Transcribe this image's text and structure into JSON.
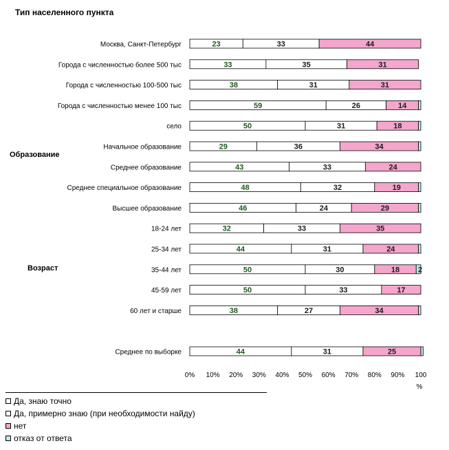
{
  "chart_data": {
    "type": "bar",
    "stacked": true,
    "orientation": "horizontal",
    "title": "Тип населенного пункта",
    "x_unit": "%",
    "xlim": [
      0,
      100
    ],
    "x_ticks": [
      "0%",
      "10%",
      "20%",
      "30%",
      "40%",
      "50%",
      "60%",
      "70%",
      "80%",
      "90%",
      "100"
    ],
    "categories": [
      "Москва, Санкт-Петербург",
      "Города с численностью более 500 тыс",
      "Города с численностью 100-500 тыс",
      "Города с численностью менее 100 тыс",
      "село",
      "Начальное образование",
      "Среднее образование",
      "Среднее специальное образование",
      "Высшее образование",
      "18-24 лет",
      "25-34 лет",
      "35-44 лет",
      "45-59 лет",
      "60 лет и старше",
      "",
      "Среднее по выборке"
    ],
    "group_labels": [
      {
        "label": "Образование",
        "category_index": 5
      },
      {
        "label": "Возраст",
        "category_index": 11
      }
    ],
    "series": [
      {
        "name": "Да, знаю точно",
        "color": "#ffffff",
        "values": [
          23,
          33,
          38,
          59,
          50,
          29,
          43,
          48,
          46,
          32,
          44,
          50,
          50,
          38,
          null,
          44
        ]
      },
      {
        "name": "Да, примерно знаю (при необходимости найду)",
        "color": "#ffffff",
        "values": [
          33,
          35,
          31,
          26,
          31,
          36,
          33,
          32,
          24,
          33,
          31,
          30,
          33,
          27,
          null,
          31
        ]
      },
      {
        "name": "нет",
        "color": "#f4a6cc",
        "values": [
          44,
          31,
          31,
          14,
          18,
          34,
          24,
          19,
          29,
          35,
          24,
          18,
          17,
          34,
          null,
          25
        ]
      },
      {
        "name": "отказ от ответа",
        "color": "#bfe8ea",
        "values": [
          0,
          0,
          0,
          1,
          1,
          1,
          0,
          1,
          1,
          0,
          1,
          2,
          0,
          1,
          null,
          1
        ]
      }
    ],
    "data_labels": [
      [
        "23",
        "33",
        "44",
        ""
      ],
      [
        "33",
        "35",
        "31",
        ""
      ],
      [
        "38",
        "31",
        "31",
        ""
      ],
      [
        "59",
        "26",
        "14",
        ""
      ],
      [
        "50",
        "31",
        "18",
        ""
      ],
      [
        "29",
        "36",
        "34",
        ""
      ],
      [
        "43",
        "33",
        "24",
        ""
      ],
      [
        "48",
        "32",
        "19",
        ""
      ],
      [
        "46",
        "24",
        "29",
        ""
      ],
      [
        "32",
        "33",
        "35",
        ""
      ],
      [
        "44",
        "31",
        "24",
        ""
      ],
      [
        "50",
        "30",
        "18",
        "2"
      ],
      [
        "50",
        "33",
        "17",
        ""
      ],
      [
        "38",
        "27",
        "34",
        ""
      ],
      [
        "",
        "",
        "",
        ""
      ],
      [
        "44",
        "31",
        "25",
        ""
      ]
    ],
    "legend_position": "bottom-left",
    "grid": false
  }
}
